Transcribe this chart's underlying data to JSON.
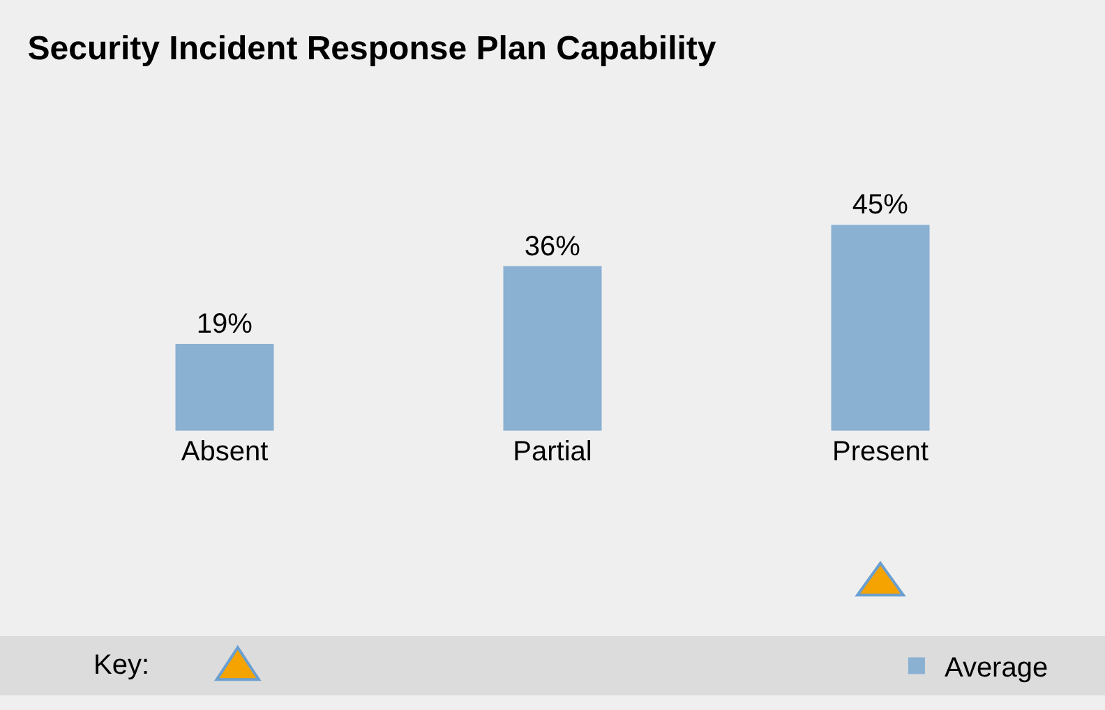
{
  "chart_data": {
    "type": "bar",
    "title": "Security Incident Response Plan Capability",
    "categories": [
      "Absent",
      "Partial",
      "Present"
    ],
    "series": [
      {
        "name": "Average",
        "color": "#8ab0d2",
        "values": [
          19,
          36,
          45
        ],
        "value_labels": [
          "19%",
          "36%",
          "45%"
        ]
      }
    ],
    "annotations": [
      "Key:"
    ],
    "legend": "bottom",
    "grid": false
  }
}
